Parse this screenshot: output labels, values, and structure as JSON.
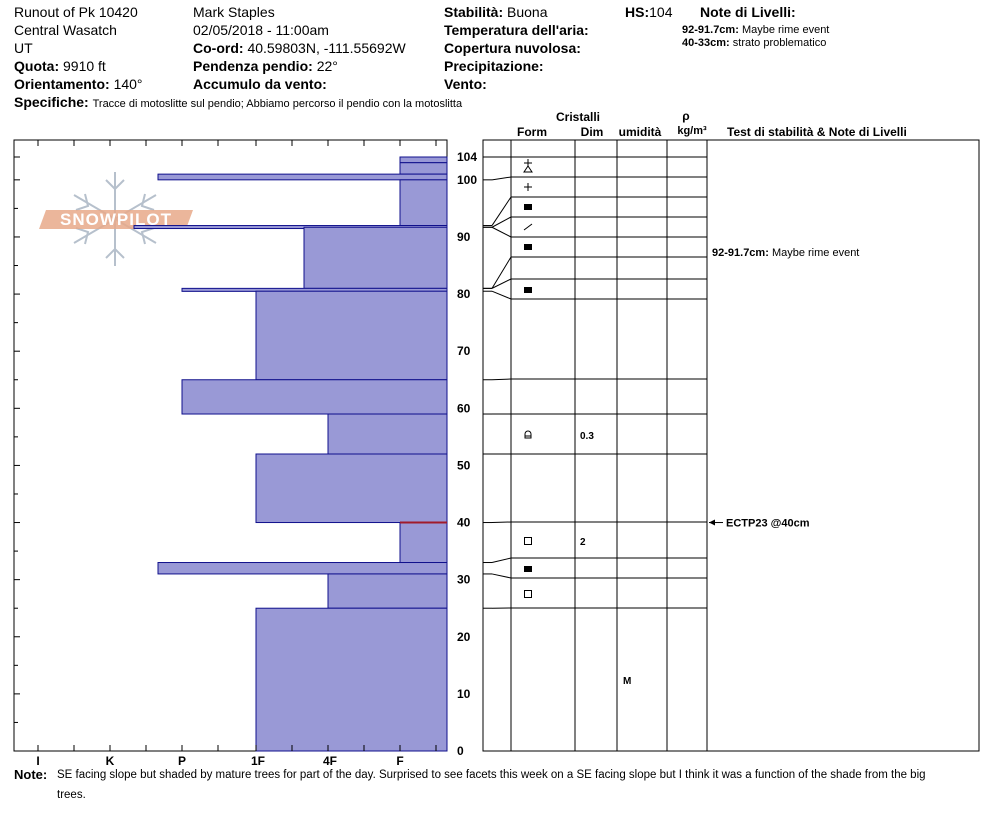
{
  "header": {
    "location": "Runout of Pk 10420",
    "range": "Central Wasatch",
    "state": "UT",
    "elevation_label": "Quota:",
    "elevation": "9910 ft",
    "aspect_label": "Orientamento:",
    "aspect": "140°",
    "observer": "Mark Staples",
    "datetime": "02/05/2018 - 11:00am",
    "coord_label": "Co-ord:",
    "coord": "40.59803N, -111.55692W",
    "slope_label": "Pendenza pendio:",
    "slope": "22°",
    "wind_loading_label": "Accumulo da vento:",
    "stability_label": "Stabilità:",
    "stability": "Buona",
    "air_temp_label": "Temperatura dell'aria:",
    "cloud_label": "Copertura nuvolosa:",
    "precip_label": "Precipitazione:",
    "wind_label": "Vento:",
    "hs_label": "HS:",
    "hs": "104",
    "layer_notes_label": "Note di Livelli:",
    "layer_notes": [
      {
        "range": "92-91.7cm:",
        "text": "Maybe rime event"
      },
      {
        "range": "40-33cm:",
        "text": "strato problematico"
      }
    ],
    "specifics_label": "Specifiche:",
    "specifics": "Tracce di motoslitte sul pendio; Abbiamo percorso il pendio con la motoslitta"
  },
  "columns": {
    "crystals": "Cristalli",
    "form": "Form",
    "dim": "Dim",
    "moisture": "umidità",
    "rho": "ρ",
    "density_unit": "kg/m³",
    "stability_notes": "Test di stabilità & Note di Livelli"
  },
  "logo_text": "SNOWPILOT",
  "hardness_labels": [
    "I",
    "K",
    "P",
    "1F",
    "4F",
    "F"
  ],
  "depth_ticks": [
    104,
    100,
    90,
    80,
    70,
    60,
    50,
    40,
    30,
    20,
    10,
    0
  ],
  "chart_data": {
    "type": "bar",
    "title": "",
    "xlabel": "",
    "ylabel": "",
    "ylim": [
      0,
      104
    ],
    "layers": [
      {
        "top": 104,
        "bottom": 103,
        "hardness": "F"
      },
      {
        "top": 103,
        "bottom": 101,
        "hardness": "F"
      },
      {
        "top": 101,
        "bottom": 100,
        "hardness": "P+"
      },
      {
        "top": 100,
        "bottom": 92,
        "hardness": "F"
      },
      {
        "top": 92,
        "bottom": 91.7,
        "hardness": "K-"
      },
      {
        "top": 91.7,
        "bottom": 81,
        "hardness": "4F+"
      },
      {
        "top": 81,
        "bottom": 80.5,
        "hardness": "P"
      },
      {
        "top": 80.5,
        "bottom": 65,
        "hardness": "1F"
      },
      {
        "top": 65,
        "bottom": 59,
        "hardness": "P"
      },
      {
        "top": 59,
        "bottom": 52,
        "hardness": "4F"
      },
      {
        "top": 52,
        "bottom": 40,
        "hardness": "1F"
      },
      {
        "top": 40,
        "bottom": 33,
        "hardness": "F"
      },
      {
        "top": 33,
        "bottom": 31,
        "hardness": "P+"
      },
      {
        "top": 31,
        "bottom": 25,
        "hardness": "4F"
      },
      {
        "top": 25,
        "bottom": 0,
        "hardness": "1F"
      }
    ],
    "grains": [
      {
        "depth": 102.5,
        "form": "mixed",
        "size": ""
      },
      {
        "depth": 98.5,
        "form": "plus",
        "size": ""
      },
      {
        "depth": 95,
        "form": "rounded",
        "size": ""
      },
      {
        "depth": 91.5,
        "form": "slash",
        "size": ""
      },
      {
        "depth": 88,
        "form": "rounded",
        "size": ""
      },
      {
        "depth": 80.5,
        "form": "rounded",
        "size": ""
      },
      {
        "depth": 55.5,
        "form": "melt",
        "size": "0.3"
      },
      {
        "depth": 36.5,
        "form": "facet",
        "size": "2"
      },
      {
        "depth": 32,
        "form": "rounded",
        "size": ""
      },
      {
        "depth": 27.5,
        "form": "facet",
        "size": ""
      }
    ],
    "moisture_markers": [
      {
        "depth": 12.5,
        "text": "M"
      }
    ],
    "layer_annotations": [
      {
        "depth": 91.8,
        "range": "92-91.7cm:",
        "text": "Maybe rime event"
      }
    ],
    "stability_tests": [
      {
        "depth": 40,
        "text": "ECTP23 @40cm"
      }
    ],
    "colors": {
      "fill": "#9999d6",
      "edge": "#10108c",
      "weak_layer": "#a11a2a"
    }
  },
  "footer": {
    "note_label": "Note:",
    "note_line1": "SE facing slope but shaded by mature trees for part of the day. Surprised to see facets this week on a SE facing slope but I think it was a function of the shade from the big",
    "note_line2": "trees."
  }
}
